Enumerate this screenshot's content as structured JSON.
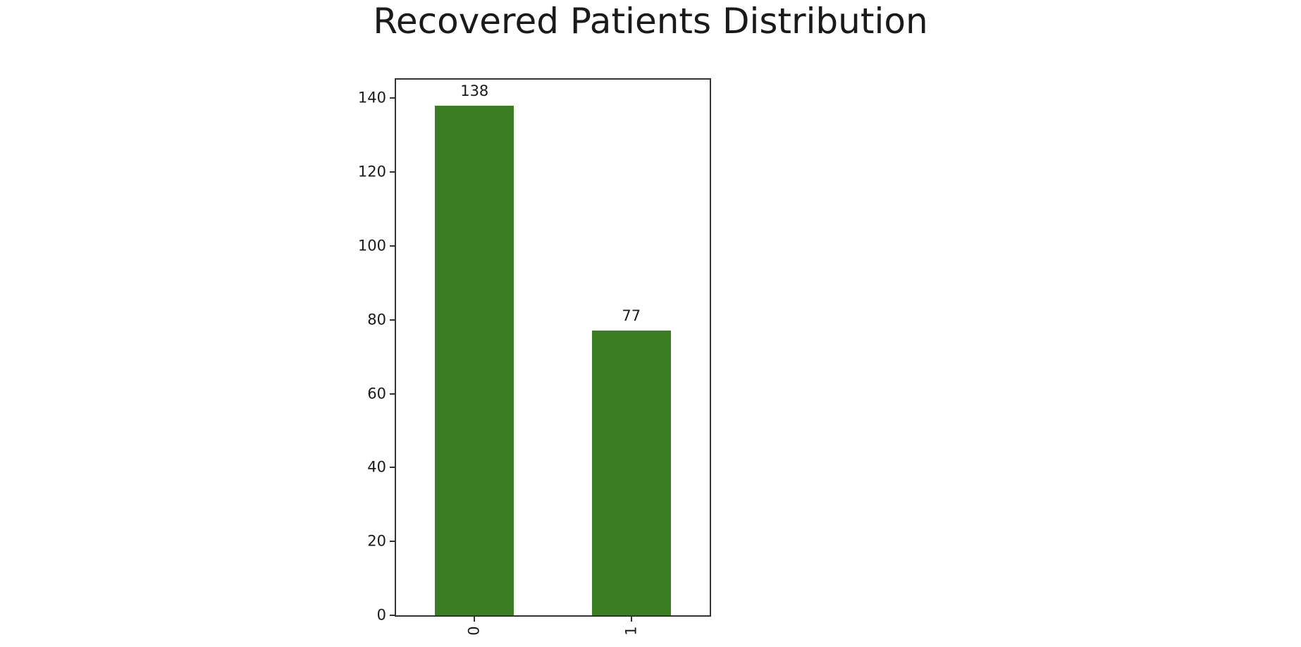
{
  "chart_data": {
    "type": "bar",
    "title": "Recovered Patients Distribution",
    "categories": [
      "0",
      "1"
    ],
    "values": [
      138,
      77
    ],
    "bar_value_labels": [
      "138",
      "77"
    ],
    "xlabel": "",
    "ylabel": "",
    "ylim": [
      0,
      145
    ],
    "yticks": [
      0,
      20,
      40,
      60,
      80,
      100,
      120,
      140
    ],
    "x_tick_rotation_deg": 90,
    "grid": false,
    "legend_position": "none",
    "colors": {
      "bar": "#3a7d22",
      "spine": "#333333",
      "text": "#1a1a1a",
      "background": "#ffffff"
    }
  }
}
